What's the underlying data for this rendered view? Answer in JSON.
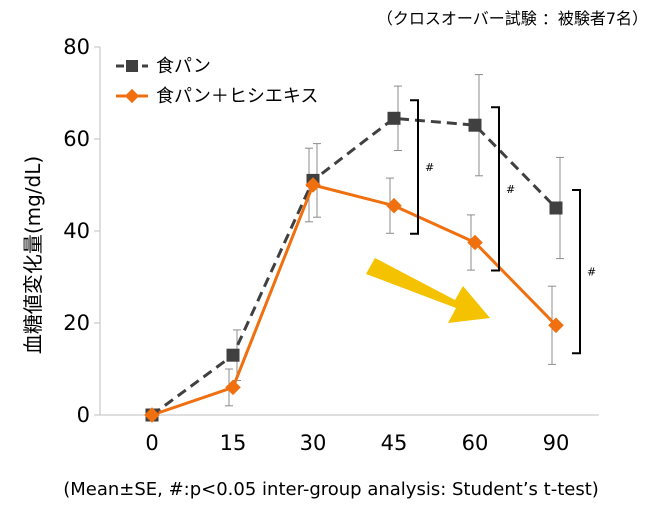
{
  "chart_data": {
    "type": "line",
    "note_top": "（クロスオーバー試験 ：被験者7名）",
    "note_bottom": "(Mean±SE, #:p<0.05 inter-group analysis: Student’s t-test)",
    "ylabel": "血糖値変化量(mg/dL)",
    "xlabel": "",
    "x": [
      0,
      15,
      30,
      45,
      60,
      90
    ],
    "x_tick_labels": [
      "0",
      "15",
      "30",
      "45",
      "60",
      "90"
    ],
    "ylim": [
      0,
      80
    ],
    "y_ticks": [
      0,
      20,
      40,
      60,
      80
    ],
    "y_tick_labels": [
      "0",
      "20",
      "40",
      "60",
      "80"
    ],
    "grid": false,
    "legend_position": "top-left",
    "series": [
      {
        "name": "食パン",
        "color": "#404040",
        "marker": "square",
        "line_style": "dashed",
        "values": [
          0,
          13,
          51,
          64.5,
          63,
          45
        ],
        "error": [
          0,
          5.5,
          8,
          7,
          11,
          11
        ]
      },
      {
        "name": "食パン＋ヒシエキス",
        "color": "#f07010",
        "marker": "diamond",
        "line_style": "solid",
        "values": [
          0,
          6,
          50,
          45.5,
          37.5,
          19.5
        ],
        "error": [
          0,
          4,
          8,
          6,
          6,
          8.5
        ]
      }
    ],
    "significance": [
      {
        "x": 45,
        "label": "#"
      },
      {
        "x": 60,
        "label": "#"
      },
      {
        "x": 90,
        "label": "#"
      }
    ],
    "arrow_color": "#f5c200"
  }
}
